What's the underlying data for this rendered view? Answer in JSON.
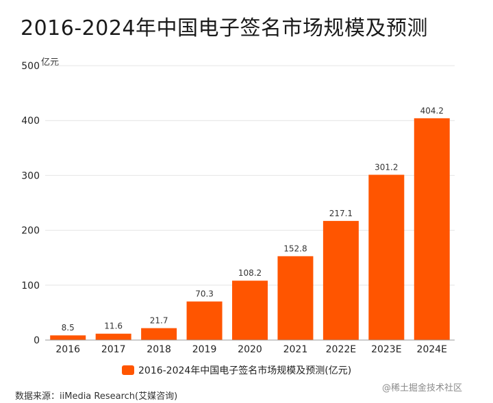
{
  "chart_data": {
    "type": "bar",
    "title": "2016-2024年中国电子签名市场规模及预测",
    "unit": "亿元",
    "categories": [
      "2016",
      "2017",
      "2018",
      "2019",
      "2020",
      "2021",
      "2022E",
      "2023E",
      "2024E"
    ],
    "series": [
      {
        "name": "2016-2024年中国电子签名市场规模及预测(亿元)",
        "values": [
          8.5,
          11.6,
          21.7,
          70.3,
          108.2,
          152.8,
          217.1,
          301.2,
          404.2
        ]
      }
    ],
    "value_labels": [
      "8.5",
      "11.6",
      "21.7",
      "70.3",
      "108.2",
      "152.8",
      "217.1",
      "301.2",
      "404.2"
    ],
    "y_ticks": [
      "0",
      "100",
      "200",
      "300",
      "400",
      "500"
    ],
    "ylim": [
      0,
      500
    ],
    "grid": true,
    "legend_position": "bottom",
    "bar_color": "#ff5500"
  },
  "source": "数据来源：iiMedia Research(艾媒咨询)",
  "watermark": "@稀土掘金技术社区"
}
